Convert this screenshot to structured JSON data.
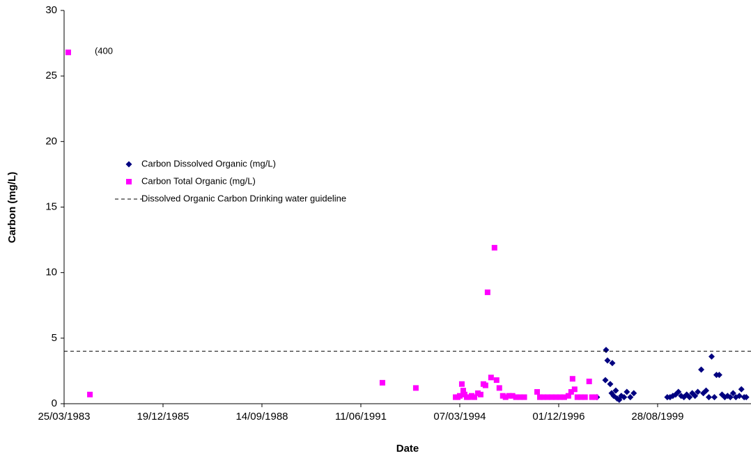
{
  "chart_data": {
    "type": "scatter",
    "x_label": "Date",
    "y_label": "Carbon (mg/L)",
    "annotation": "(400",
    "xlim": [
      "1983-03-25",
      "2002-03-29"
    ],
    "xticks": [
      {
        "value": "1983-03-25",
        "label": "25/03/1983"
      },
      {
        "value": "1985-12-19",
        "label": "19/12/1985"
      },
      {
        "value": "1988-09-14",
        "label": "14/09/1988"
      },
      {
        "value": "1991-06-11",
        "label": "11/06/1991"
      },
      {
        "value": "1994-03-07",
        "label": "07/03/1994"
      },
      {
        "value": "1996-12-01",
        "label": "01/12/1996"
      },
      {
        "value": "1999-08-28",
        "label": "28/08/1999"
      }
    ],
    "ylim": [
      0,
      30
    ],
    "yticks": [
      0,
      5,
      10,
      15,
      20,
      25,
      30
    ],
    "grid": false,
    "legend": "left",
    "series": [
      {
        "name": "Carbon Dissolved Organic (mg/L)",
        "color": "#000080",
        "marker": "diamond",
        "x": [
          "1997-12-23",
          "1998-03-25",
          "1998-03-18",
          "1998-04-08",
          "1998-05-06",
          "1998-05-27",
          "1998-05-20",
          "1998-06-10",
          "1998-07-01",
          "1998-07-15",
          "1998-08-05",
          "1998-08-26",
          "1998-09-23",
          "1998-10-21",
          "1998-11-25",
          "1998-12-30",
          "1999-12-04",
          "2000-01-01",
          "2000-01-29",
          "2000-02-26",
          "2000-03-25",
          "2000-04-22",
          "2000-05-20",
          "2000-06-17",
          "2000-07-15",
          "2000-08-12",
          "2000-09-09",
          "2000-10-07",
          "2000-11-11",
          "2000-12-02",
          "2000-12-30",
          "2001-01-27",
          "2001-02-24",
          "2001-03-24",
          "2001-04-14",
          "2001-05-12",
          "2001-06-09",
          "2001-07-07",
          "2001-08-04",
          "2001-09-01",
          "2001-09-29",
          "2001-10-27",
          "2001-12-01",
          "2001-12-22",
          "2002-01-19",
          "2002-02-09"
        ],
        "values": [
          0.5,
          4.1,
          1.8,
          3.3,
          1.5,
          3.1,
          0.8,
          0.6,
          1.0,
          0.4,
          0.3,
          0.6,
          0.5,
          0.9,
          0.5,
          0.8,
          0.5,
          0.5,
          0.6,
          0.7,
          0.9,
          0.6,
          0.5,
          0.7,
          0.5,
          0.8,
          0.6,
          0.9,
          2.6,
          0.8,
          1.0,
          0.5,
          3.6,
          0.5,
          2.2,
          2.2,
          0.7,
          0.5,
          0.6,
          0.5,
          0.8,
          0.5,
          0.6,
          1.1,
          0.5,
          0.5
        ]
      },
      {
        "name": "Carbon Total Organic (mg/L)",
        "color": "#ff00ff",
        "marker": "square",
        "x": [
          "1983-05-06",
          "1983-12-11",
          "1992-01-15",
          "1992-12-18",
          "1994-01-24",
          "1994-02-14",
          "1994-03-07",
          "1994-03-28",
          "1994-04-11",
          "1994-04-25",
          "1994-05-16",
          "1994-06-06",
          "1994-07-05",
          "1994-08-02",
          "1994-09-06",
          "1994-10-04",
          "1994-11-01",
          "1994-11-22",
          "1994-12-13",
          "1995-01-17",
          "1995-02-21",
          "1995-03-14",
          "1995-04-11",
          "1995-05-16",
          "1995-06-13",
          "1995-07-18",
          "1995-08-22",
          "1995-09-26",
          "1995-11-07",
          "1995-12-19",
          "1996-04-27",
          "1996-05-25",
          "1996-06-29",
          "1996-08-10",
          "1996-09-21",
          "1996-11-02",
          "1996-12-15",
          "1997-01-26",
          "1997-03-09",
          "1997-04-06",
          "1997-04-20",
          "1997-05-11",
          "1997-06-08",
          "1997-07-13",
          "1997-08-24",
          "1997-10-05",
          "1997-11-02",
          "1997-12-07"
        ],
        "values": [
          26.8,
          0.7,
          1.6,
          1.2,
          0.5,
          0.5,
          0.6,
          1.5,
          1.0,
          0.7,
          0.5,
          0.5,
          0.6,
          0.5,
          0.8,
          0.7,
          1.5,
          1.4,
          8.5,
          2.0,
          11.9,
          1.8,
          1.2,
          0.6,
          0.5,
          0.6,
          0.6,
          0.5,
          0.5,
          0.5,
          0.9,
          0.5,
          0.5,
          0.5,
          0.5,
          0.5,
          0.5,
          0.5,
          0.6,
          0.9,
          1.9,
          1.1,
          0.5,
          0.5,
          0.5,
          1.7,
          0.5,
          0.5
        ]
      },
      {
        "name": "Dissolved Organic Carbon Drinking water guideline",
        "color": "#000000",
        "marker": "none",
        "style": "dashed",
        "x": [
          "1983-03-25",
          "2002-03-29"
        ],
        "values": [
          4,
          4
        ]
      }
    ]
  }
}
